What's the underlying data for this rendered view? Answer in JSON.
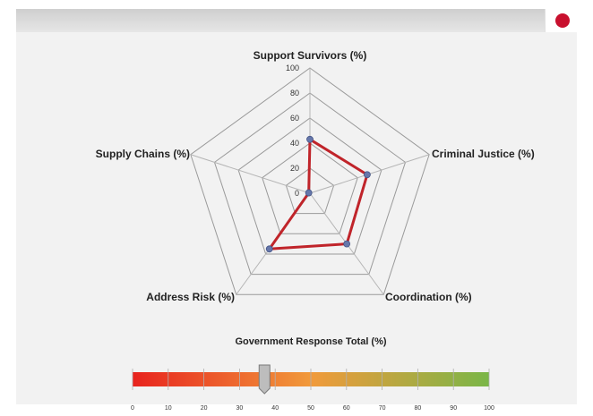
{
  "flag": {
    "color": "#c8102e"
  },
  "chart_data": [
    {
      "type": "radar",
      "axes": [
        "Support Survivors (%)",
        "Criminal Justice (%)",
        "Coordination (%)",
        "Address Risk (%)",
        "Supply Chains (%)"
      ],
      "values": [
        43,
        48,
        50,
        55,
        1
      ],
      "rlim": [
        0,
        100
      ],
      "ticks": [
        "0",
        "20",
        "40",
        "60",
        "80",
        "100"
      ],
      "line_color": "#c0242a",
      "marker_color": "#6677aa",
      "grid": true
    },
    {
      "type": "bar",
      "title": "Government Response Total (%)",
      "value": 37,
      "xlim": [
        0,
        100
      ],
      "ticks": [
        "0",
        "10",
        "20",
        "30",
        "40",
        "50",
        "60",
        "70",
        "80",
        "90",
        "100"
      ],
      "gradient": [
        "#e8231e",
        "#f19a3b",
        "#7ab648"
      ]
    }
  ]
}
